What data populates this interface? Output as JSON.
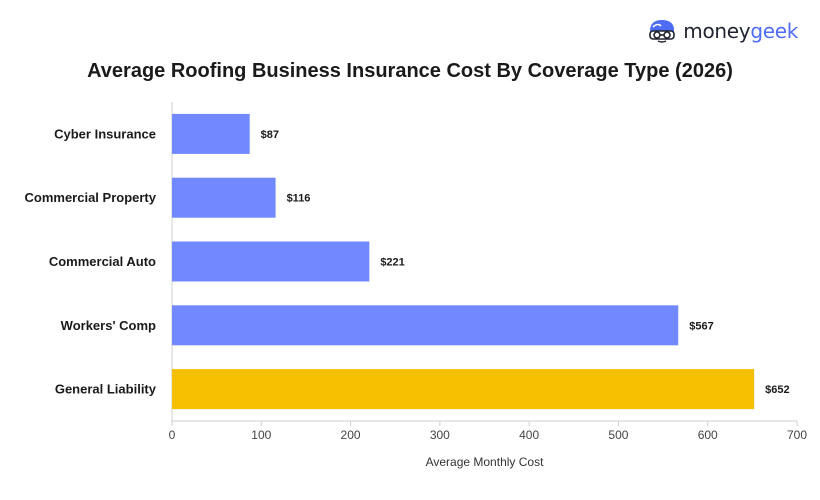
{
  "brand": {
    "name_part1": "money",
    "name_part2": "geek",
    "icon": "moneygeek-mascot-icon",
    "colors": {
      "dark": "#1f2430",
      "accent": "#4f6cf5"
    }
  },
  "chart_data": {
    "type": "bar",
    "orientation": "horizontal",
    "title": "Average Roofing Business Insurance Cost By Coverage Type (2026)",
    "xlabel": "Average Monthly Cost",
    "ylabel": "",
    "categories": [
      "Cyber Insurance",
      "Commercial Property",
      "Commercial Auto",
      "Workers' Comp",
      "General Liability"
    ],
    "values": [
      87,
      116,
      221,
      567,
      652
    ],
    "value_labels": [
      "$87",
      "$116",
      "$221",
      "$567",
      "$652"
    ],
    "xlim": [
      0,
      700
    ],
    "xticks": [
      0,
      100,
      200,
      300,
      400,
      500,
      600,
      700
    ],
    "grid": false,
    "colors": {
      "default": "#7289fd",
      "highlight": "#f5c000",
      "highlight_category": "General Liability"
    }
  }
}
